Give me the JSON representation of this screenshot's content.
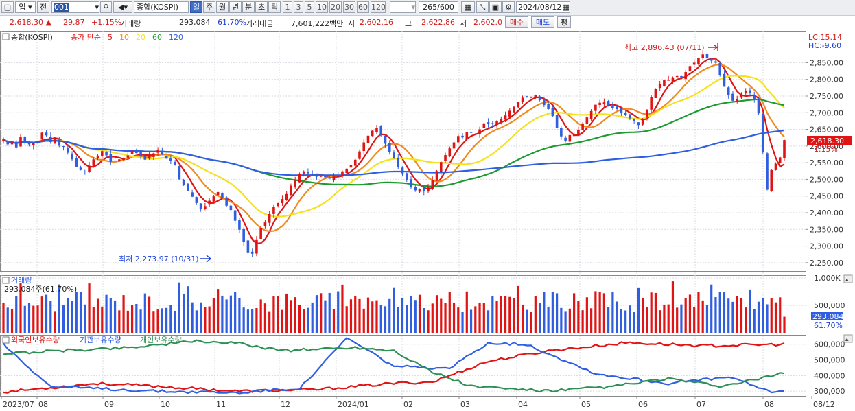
{
  "toolbar": {
    "market": "업",
    "prev": "전",
    "code": "001",
    "name": "종합(KOSPI)",
    "periods": [
      "일",
      "주",
      "월",
      "년",
      "분",
      "초",
      "틱"
    ],
    "minutes": [
      "1",
      "3",
      "5",
      "10",
      "20",
      "30",
      "60",
      "120"
    ],
    "count": "265/600",
    "date": "2024/08/12"
  },
  "info": {
    "price": "2,618.30",
    "change": "29.87",
    "pct": "+1.15%",
    "vol_label": "거래량",
    "vol": "293,084",
    "vol_pct": "61.70%",
    "amt_label": "거래대금",
    "amt": "7,601,222백만",
    "open_label": "시",
    "open": "2,602.16",
    "high_label": "고",
    "high": "2,622.86",
    "low_label": "저",
    "low": "2,602.0",
    "buy": "매수",
    "sell": "매도",
    "eval": "평"
  },
  "chart_data": {
    "type": "line",
    "price_panel": {
      "series_label": "종합(KOSPI)",
      "ma_label": "종가 단순",
      "ma_periods": [
        "5",
        "10",
        "20",
        "60",
        "120"
      ],
      "ma_colors": [
        "#e01414",
        "#f08a1e",
        "#f4e21a",
        "#1e9a32",
        "#2f5ee0"
      ],
      "ylim": [
        2225,
        2925
      ],
      "yticks": [
        "2,850.00",
        "2,800.00",
        "2,750.00",
        "2,700.00",
        "2,650.00",
        "2,600.00",
        "2,550.00",
        "2,500.00",
        "2,450.00",
        "2,400.00",
        "2,350.00",
        "2,300.00",
        "2,250.00"
      ],
      "lc": "LC:15.14",
      "hc": "HC:-9.60",
      "last_price": "2,618.30",
      "last_pct": "1.15%",
      "high_note": "최고 2,896.43 (07/11)",
      "low_note": "최저 2,273.97 (10/31)"
    },
    "volume_panel": {
      "title": "거래량",
      "detail": "293,084주(61.70%)",
      "yticks": [
        "1,000K",
        "500,000"
      ],
      "last": "293,084",
      "last_pct": "61.70%"
    },
    "holding_panel": {
      "series": [
        {
          "name": "외국인보유수량",
          "color": "#e01414"
        },
        {
          "name": "기관보유수량",
          "color": "#2f5ee0"
        },
        {
          "name": "개인보유수량",
          "color": "#2e8f55"
        }
      ],
      "yticks": [
        "600,000",
        "500,000",
        "400,000",
        "300,000"
      ]
    },
    "xticks": [
      "2023/07",
      "08",
      "09",
      "10",
      "11",
      "12",
      "2024/01",
      "02",
      "03",
      "04",
      "05",
      "06",
      "07",
      "08",
      "08/12"
    ],
    "closes": [
      2620,
      2605,
      2612,
      2596,
      2628,
      2612,
      2605,
      2608,
      2615,
      2640,
      2632,
      2612,
      2622,
      2601,
      2598,
      2580,
      2560,
      2538,
      2528,
      2522,
      2541,
      2560,
      2571,
      2585,
      2572,
      2553,
      2556,
      2560,
      2563,
      2572,
      2586,
      2579,
      2570,
      2559,
      2572,
      2578,
      2589,
      2575,
      2562,
      2556,
      2542,
      2500,
      2484,
      2466,
      2448,
      2429,
      2412,
      2420,
      2436,
      2449,
      2462,
      2445,
      2421,
      2408,
      2376,
      2349,
      2313,
      2281,
      2277,
      2318,
      2354,
      2371,
      2396,
      2418,
      2429,
      2441,
      2456,
      2481,
      2496,
      2516,
      2524,
      2518,
      2512,
      2508,
      2510,
      2506,
      2502,
      2510,
      2510,
      2524,
      2532,
      2543,
      2559,
      2584,
      2611,
      2631,
      2646,
      2655,
      2633,
      2607,
      2583,
      2563,
      2537,
      2518,
      2497,
      2477,
      2467,
      2471,
      2464,
      2476,
      2498,
      2525,
      2552,
      2573,
      2593,
      2611,
      2630,
      2626,
      2642,
      2641,
      2637,
      2650,
      2668,
      2666,
      2668,
      2674,
      2681,
      2692,
      2706,
      2718,
      2733,
      2745,
      2749,
      2747,
      2753,
      2738,
      2723,
      2711,
      2690,
      2654,
      2629,
      2616,
      2633,
      2634,
      2649,
      2668,
      2686,
      2705,
      2724,
      2730,
      2731,
      2722,
      2715,
      2711,
      2700,
      2694,
      2683,
      2674,
      2663,
      2681,
      2708,
      2748,
      2772,
      2785,
      2799,
      2798,
      2806,
      2810,
      2806,
      2822,
      2840,
      2850,
      2864,
      2875,
      2865,
      2856,
      2850,
      2812,
      2778,
      2752,
      2736,
      2742,
      2755,
      2765,
      2758,
      2742,
      2698,
      2581,
      2469,
      2528,
      2547,
      2566,
      2618
    ]
  }
}
